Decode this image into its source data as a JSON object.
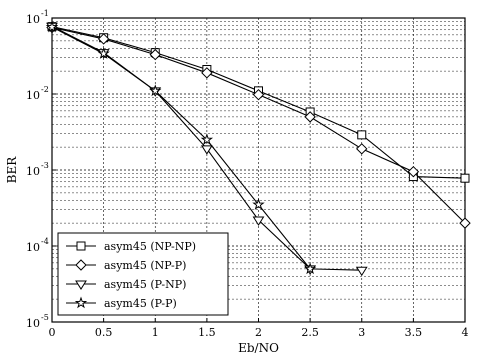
{
  "chart_data": {
    "type": "line",
    "title": "",
    "xlabel": "Eb/NO",
    "ylabel": "BER",
    "xlim": [
      0,
      4
    ],
    "ylim": [
      1e-05,
      0.1
    ],
    "yscale": "log",
    "grid": true,
    "legend_position": "bottom-left",
    "x_ticks": [
      {
        "value": 0,
        "label": "0"
      },
      {
        "value": 0.5,
        "label": "0.5"
      },
      {
        "value": 1,
        "label": "1"
      },
      {
        "value": 1.5,
        "label": "1.5"
      },
      {
        "value": 2,
        "label": "2"
      },
      {
        "value": 2.5,
        "label": "2.5"
      },
      {
        "value": 3,
        "label": "3"
      },
      {
        "value": 3.5,
        "label": "3.5"
      },
      {
        "value": 4,
        "label": "4"
      }
    ],
    "y_ticks": [
      {
        "value": 0.1,
        "base": "10",
        "exp": "-1"
      },
      {
        "value": 0.01,
        "base": "10",
        "exp": "-2"
      },
      {
        "value": 0.001,
        "base": "10",
        "exp": "-3"
      },
      {
        "value": 0.0001,
        "base": "10",
        "exp": "-4"
      },
      {
        "value": 1e-05,
        "base": "10",
        "exp": "-5"
      }
    ],
    "series": [
      {
        "name": "asym45 (NP-NP)",
        "marker": "square",
        "points": [
          [
            0,
            0.077
          ],
          [
            0.5,
            0.055
          ],
          [
            1,
            0.035
          ],
          [
            1.5,
            0.021
          ],
          [
            2,
            0.011
          ],
          [
            2.5,
            0.0058
          ],
          [
            3,
            0.0029
          ],
          [
            3.5,
            0.00082
          ],
          [
            4,
            0.00078
          ]
        ]
      },
      {
        "name": "asym45 (NP-P)",
        "marker": "diamond",
        "points": [
          [
            0,
            0.075
          ],
          [
            0.5,
            0.053
          ],
          [
            1,
            0.033
          ],
          [
            1.5,
            0.019
          ],
          [
            2,
            0.0098
          ],
          [
            2.5,
            0.005
          ],
          [
            3,
            0.0019
          ],
          [
            3.5,
            0.00095
          ],
          [
            4,
            0.0002
          ]
        ]
      },
      {
        "name": "asym45 (P-NP)",
        "marker": "triangle-down",
        "points": [
          [
            0,
            0.078
          ],
          [
            0.5,
            0.035
          ],
          [
            1,
            0.011
          ],
          [
            1.5,
            0.0019
          ],
          [
            2,
            0.00022
          ],
          [
            2.5,
            5e-05
          ],
          [
            3,
            4.8e-05
          ]
        ]
      },
      {
        "name": "asym45 (P-P)",
        "marker": "star",
        "points": [
          [
            0,
            0.076
          ],
          [
            0.5,
            0.034
          ],
          [
            1,
            0.011
          ],
          [
            1.5,
            0.0025
          ],
          [
            2,
            0.00035
          ],
          [
            2.5,
            5e-05
          ]
        ]
      }
    ]
  }
}
